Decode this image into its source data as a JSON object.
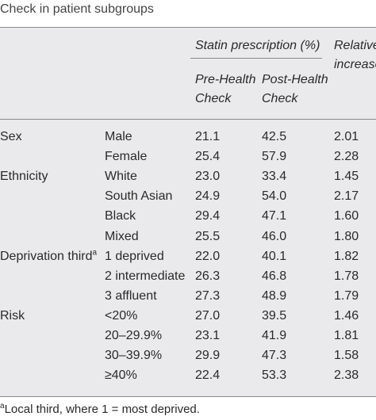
{
  "title": "Check in patient subgroups",
  "header": {
    "statin_label": "Statin prescription (%)",
    "pre_line1": "Pre-Health",
    "pre_line2": "Check",
    "post_line1": "Post-Health",
    "post_line2": "Check",
    "relative_line1": "Relative",
    "relative_line2": "increase"
  },
  "rows": [
    {
      "group": "Sex",
      "sup": "",
      "sub": "Male",
      "pre": "21.1",
      "post": "42.5",
      "rel": "2.01"
    },
    {
      "group": "",
      "sup": "",
      "sub": "Female",
      "pre": "25.4",
      "post": "57.9",
      "rel": "2.28"
    },
    {
      "group": "Ethnicity",
      "sup": "",
      "sub": "White",
      "pre": "23.0",
      "post": "33.4",
      "rel": "1.45"
    },
    {
      "group": "",
      "sup": "",
      "sub": "South Asian",
      "pre": "24.9",
      "post": "54.0",
      "rel": "2.17"
    },
    {
      "group": "",
      "sup": "",
      "sub": "Black",
      "pre": "29.4",
      "post": "47.1",
      "rel": "1.60"
    },
    {
      "group": "",
      "sup": "",
      "sub": "Mixed",
      "pre": "25.5",
      "post": "46.0",
      "rel": "1.80"
    },
    {
      "group": "Deprivation third",
      "sup": "a",
      "sub": "1 deprived",
      "pre": "22.0",
      "post": "40.1",
      "rel": "1.82"
    },
    {
      "group": "",
      "sup": "",
      "sub": "2 intermediate",
      "pre": "26.3",
      "post": "46.8",
      "rel": "1.78"
    },
    {
      "group": "",
      "sup": "",
      "sub": "3 affluent",
      "pre": "27.3",
      "post": "48.9",
      "rel": "1.79"
    },
    {
      "group": "Risk",
      "sup": "",
      "sub": "<20%",
      "pre": "27.0",
      "post": "39.5",
      "rel": "1.46"
    },
    {
      "group": "",
      "sup": "",
      "sub": "20–29.9%",
      "pre": "23.1",
      "post": "41.9",
      "rel": "1.81"
    },
    {
      "group": "",
      "sup": "",
      "sub": "30–39.9%",
      "pre": "29.9",
      "post": "47.3",
      "rel": "1.58"
    },
    {
      "group": "",
      "sup": "",
      "sub": "≥40%",
      "pre": "22.4",
      "post": "53.3",
      "rel": "2.38"
    }
  ],
  "footnote": {
    "mark": "a",
    "text": "Local third, where 1 = most deprived."
  }
}
